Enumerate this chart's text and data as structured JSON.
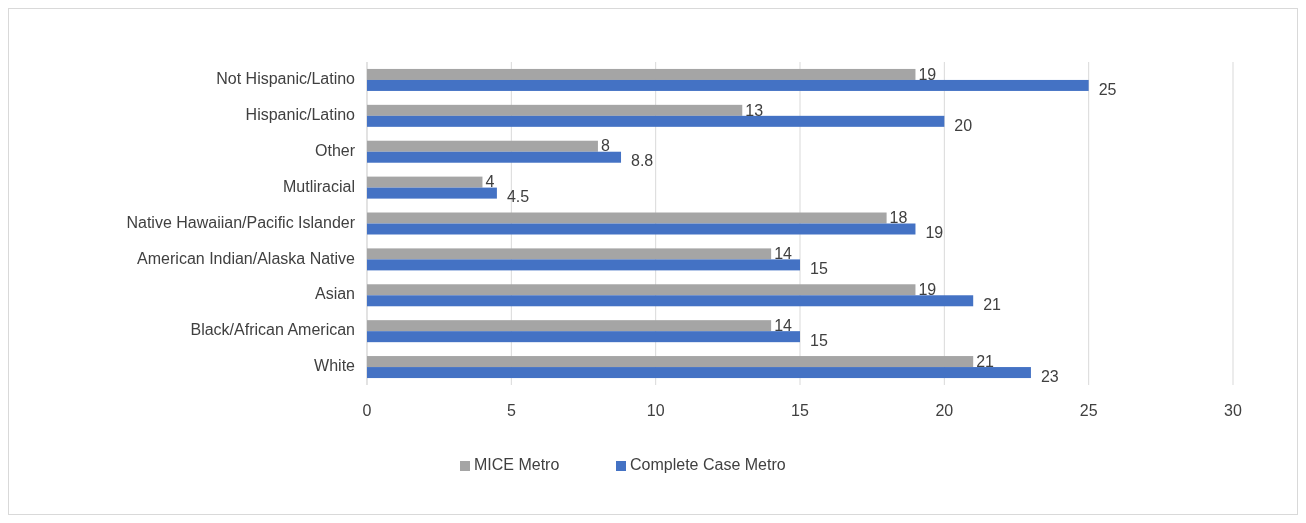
{
  "chart_data": {
    "type": "bar",
    "orientation": "horizontal",
    "categories": [
      "Not Hispanic/Latino",
      "Hispanic/Latino",
      "Other",
      "Mutliracial",
      "Native Hawaiian/Pacific Islander",
      "American Indian/Alaska Native",
      "Asian",
      "Black/African American",
      "White"
    ],
    "series": [
      {
        "name": "MICE Metro",
        "color": "#a5a5a5",
        "values": [
          19,
          13,
          8,
          4,
          18,
          14,
          19,
          14,
          21
        ]
      },
      {
        "name": "Complete Case Metro",
        "color": "#4472c4",
        "values": [
          25,
          20,
          8.8,
          4.5,
          19,
          15,
          21,
          15,
          23
        ]
      }
    ],
    "xlim": [
      0,
      30
    ],
    "xticks": [
      0,
      5,
      10,
      15,
      20,
      25,
      30
    ],
    "grid": "x",
    "legend": "bottom",
    "data_labels": true
  }
}
